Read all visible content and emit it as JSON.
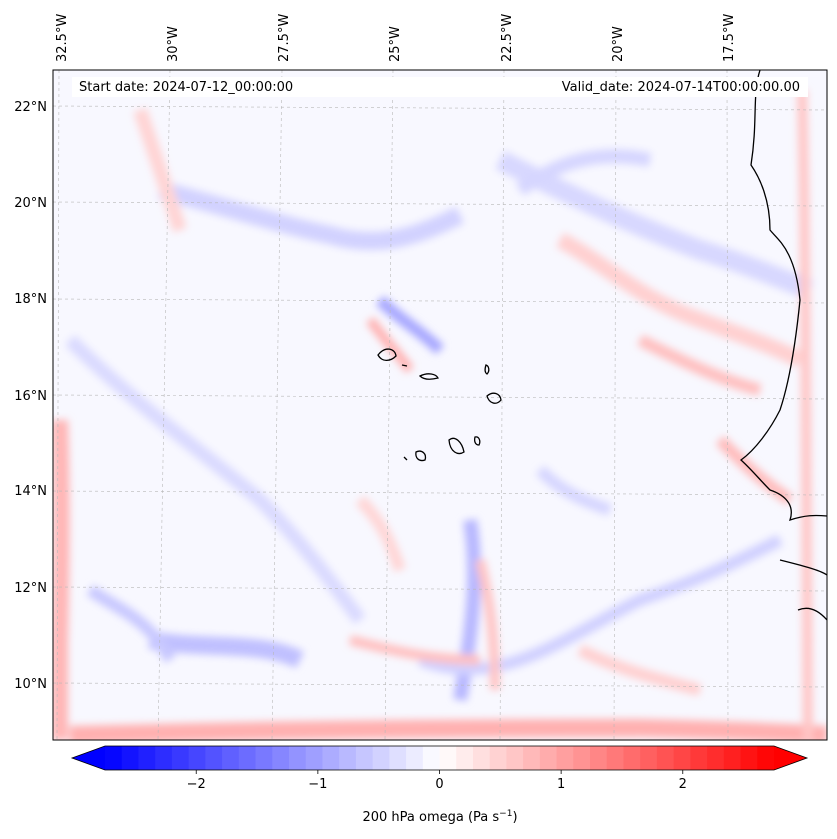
{
  "map": {
    "start_date_label": "Start date: 2024-07-12_00:00:00",
    "valid_date_label": "Valid_date: 2024-07-14T00:00:00.00",
    "lon_labels": [
      "32.5°W",
      "30°W",
      "27.5°W",
      "25°W",
      "22.5°W",
      "20°W",
      "17.5°W"
    ],
    "lat_labels": [
      "22°N",
      "20°N",
      "18°N",
      "16°N",
      "14°N",
      "12°N",
      "10°N"
    ],
    "gridlines": true,
    "field": "200 hPa omega"
  },
  "colorbar": {
    "label_main": "200 hPa omega (Pa s",
    "label_exp": "−1",
    "label_close": ")",
    "ticks": [
      "−2",
      "−1",
      "0",
      "1",
      "2"
    ],
    "range": [
      -2.75,
      2.75
    ],
    "colormap": "bwr",
    "extend": "both",
    "color_low": "#0000ff",
    "color_mid": "#ffffff",
    "color_high": "#ff0000"
  }
}
